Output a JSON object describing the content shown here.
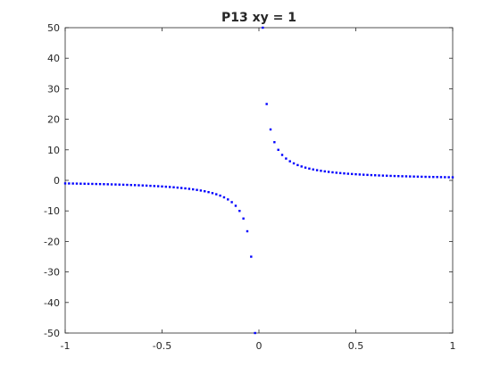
{
  "chart_data": {
    "type": "scatter",
    "title": "P13 xy = 1",
    "xlabel": "",
    "ylabel": "",
    "xlim": [
      -1,
      1
    ],
    "ylim": [
      -50,
      50
    ],
    "x_ticks": [
      -1,
      -0.5,
      0,
      0.5,
      1
    ],
    "x_tick_labels": [
      "-1",
      "-0.5",
      "0",
      "0.5",
      "1"
    ],
    "y_ticks": [
      50,
      40,
      30,
      20,
      10,
      0,
      -10,
      -20,
      -30,
      -40,
      -50
    ],
    "y_tick_labels": [
      "50",
      "40",
      "30",
      "20",
      "10",
      "0",
      "-10",
      "-20",
      "-30",
      "-40",
      "-50"
    ],
    "grid": false,
    "legend": "none",
    "marker_color": "#0000ff",
    "axis_color": "#262626",
    "series": [
      {
        "x": [
          -1,
          -0.98,
          -0.96,
          -0.94,
          -0.92,
          -0.9,
          -0.88,
          -0.86,
          -0.84,
          -0.82,
          -0.8,
          -0.78,
          -0.76,
          -0.74,
          -0.72,
          -0.7,
          -0.68,
          -0.66,
          -0.64,
          -0.62,
          -0.6,
          -0.58,
          -0.56,
          -0.54,
          -0.52,
          -0.5,
          -0.48,
          -0.46,
          -0.44,
          -0.42,
          -0.4,
          -0.38,
          -0.36,
          -0.34,
          -0.32,
          -0.3,
          -0.28,
          -0.26,
          -0.24,
          -0.22,
          -0.2,
          -0.18,
          -0.16,
          -0.14,
          -0.12,
          -0.1,
          -0.08,
          -0.06,
          -0.04,
          -0.02,
          0.02,
          0.04,
          0.06,
          0.08,
          0.1,
          0.12,
          0.14,
          0.16,
          0.18,
          0.2,
          0.22,
          0.24,
          0.26,
          0.28,
          0.3,
          0.32,
          0.34,
          0.36,
          0.38,
          0.4,
          0.42,
          0.44,
          0.46,
          0.48,
          0.5,
          0.52,
          0.54,
          0.56,
          0.58,
          0.6,
          0.62,
          0.64,
          0.66,
          0.68,
          0.7,
          0.72,
          0.74,
          0.76,
          0.78,
          0.8,
          0.82,
          0.84,
          0.86,
          0.88,
          0.9,
          0.92,
          0.94,
          0.96,
          0.98,
          1
        ],
        "y": [
          -1,
          -1.02,
          -1.04,
          -1.06,
          -1.09,
          -1.11,
          -1.14,
          -1.16,
          -1.19,
          -1.22,
          -1.25,
          -1.28,
          -1.32,
          -1.35,
          -1.39,
          -1.43,
          -1.47,
          -1.52,
          -1.56,
          -1.61,
          -1.67,
          -1.72,
          -1.79,
          -1.85,
          -1.92,
          -2,
          -2.08,
          -2.17,
          -2.27,
          -2.38,
          -2.5,
          -2.63,
          -2.78,
          -2.94,
          -3.13,
          -3.33,
          -3.57,
          -3.85,
          -4.17,
          -4.55,
          -5,
          -5.56,
          -6.25,
          -7.14,
          -8.33,
          -10,
          -12.5,
          -16.67,
          -25,
          -50,
          50,
          25,
          16.67,
          12.5,
          10,
          8.33,
          7.14,
          6.25,
          5.56,
          5,
          4.55,
          4.17,
          3.85,
          3.57,
          3.33,
          3.13,
          2.94,
          2.78,
          2.63,
          2.5,
          2.38,
          2.27,
          2.17,
          2.08,
          2,
          1.92,
          1.85,
          1.79,
          1.72,
          1.67,
          1.61,
          1.56,
          1.52,
          1.47,
          1.43,
          1.39,
          1.35,
          1.32,
          1.28,
          1.25,
          1.22,
          1.19,
          1.16,
          1.14,
          1.11,
          1.09,
          1.06,
          1.04,
          1.02,
          1
        ]
      }
    ]
  }
}
